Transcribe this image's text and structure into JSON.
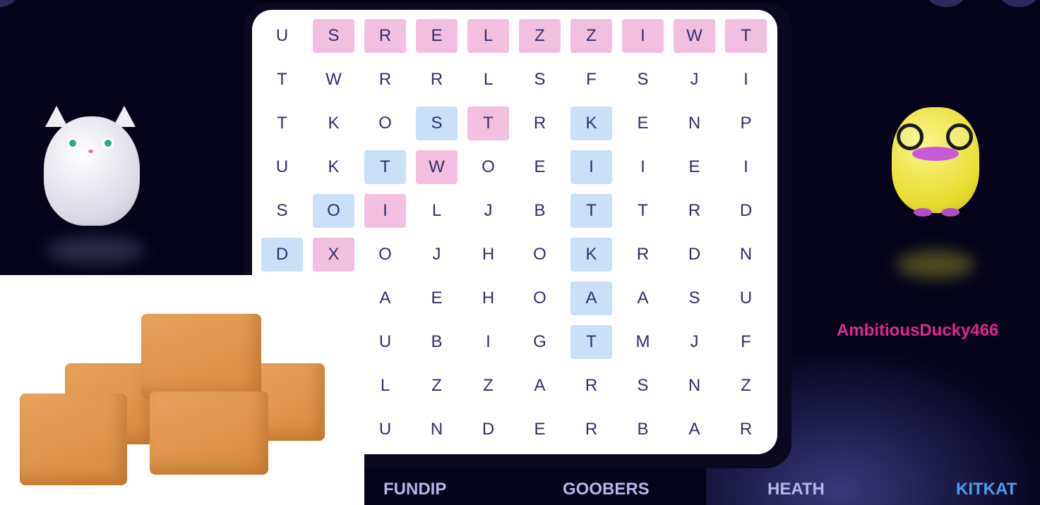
{
  "grid": {
    "rows": [
      [
        "U",
        "S",
        "R",
        "E",
        "L",
        "Z",
        "Z",
        "I",
        "W",
        "T"
      ],
      [
        "T",
        "W",
        "R",
        "R",
        "L",
        "S",
        "F",
        "S",
        "J",
        "I"
      ],
      [
        "T",
        "K",
        "O",
        "S",
        "T",
        "R",
        "K",
        "E",
        "N",
        "P"
      ],
      [
        "U",
        "K",
        "T",
        "W",
        "O",
        "E",
        "I",
        "I",
        "E",
        "I"
      ],
      [
        "S",
        "O",
        "I",
        "L",
        "J",
        "B",
        "T",
        "T",
        "R",
        "D"
      ],
      [
        "D",
        "X",
        "O",
        "J",
        "H",
        "O",
        "K",
        "R",
        "D",
        "N"
      ],
      [
        "",
        "",
        "A",
        "E",
        "H",
        "O",
        "A",
        "A",
        "S",
        "U"
      ],
      [
        "",
        "",
        "U",
        "B",
        "I",
        "G",
        "T",
        "M",
        "J",
        "F"
      ],
      [
        "",
        "",
        "L",
        "Z",
        "Z",
        "A",
        "R",
        "S",
        "N",
        "Z"
      ],
      [
        "",
        "",
        "U",
        "N",
        "D",
        "E",
        "R",
        "B",
        "A",
        "R"
      ]
    ],
    "highlights": [
      [
        "",
        "pink",
        "pink",
        "pink",
        "pink",
        "pink",
        "pink",
        "pink",
        "pink",
        "pink"
      ],
      [
        "",
        "",
        "",
        "",
        "",
        "",
        "",
        "",
        "",
        ""
      ],
      [
        "",
        "",
        "",
        "blue",
        "pink",
        "",
        "blue",
        "",
        "",
        ""
      ],
      [
        "",
        "",
        "blue",
        "pink",
        "",
        "",
        "blue",
        "",
        "",
        ""
      ],
      [
        "",
        "blue",
        "pink",
        "",
        "",
        "",
        "blue",
        "",
        "",
        ""
      ],
      [
        "blue",
        "pink",
        "",
        "",
        "",
        "",
        "blue",
        "",
        "",
        ""
      ],
      [
        "",
        "",
        "",
        "",
        "",
        "",
        "blue",
        "",
        "",
        ""
      ],
      [
        "",
        "",
        "",
        "",
        "",
        "",
        "blue",
        "",
        "",
        ""
      ],
      [
        "",
        "",
        "",
        "",
        "",
        "",
        "",
        "",
        "",
        ""
      ],
      [
        "",
        "",
        "",
        "",
        "",
        "",
        "",
        "",
        "",
        ""
      ]
    ],
    "colors": {
      "pink": "#f3bfe0",
      "blue": "#c9e0f7",
      "letter": "#2f2d6e"
    }
  },
  "player": {
    "username": "AmbitiousDucky466",
    "color": "#e0288f"
  },
  "words": [
    {
      "label": "FUNDIP",
      "found": false
    },
    {
      "label": "GOOBERS",
      "found": false
    },
    {
      "label": "HEATH",
      "found": false
    },
    {
      "label": "KITKAT",
      "found": true
    }
  ],
  "word_colors": {
    "pending": "#b7b5ea",
    "found": "#4f9ff0"
  }
}
